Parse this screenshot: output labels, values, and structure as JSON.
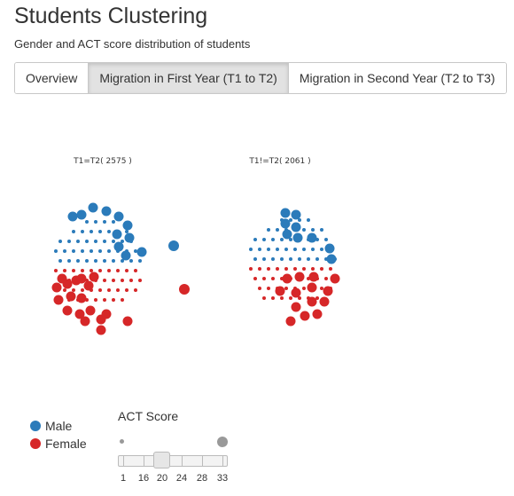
{
  "header": {
    "title": "Students Clustering",
    "subtitle": "Gender and ACT score distribution of students"
  },
  "tabs": [
    {
      "label": "Overview",
      "active": false
    },
    {
      "label": "Migration in First Year (T1 to T2)",
      "active": true
    },
    {
      "label": "Migration in Second Year (T2 to T3)",
      "active": false
    }
  ],
  "colors": {
    "male": "#2b7bba",
    "female": "#d62728",
    "slider_mark": "#999999"
  },
  "clusters": [
    {
      "label": "T1=T2( 2575 )",
      "count": 2575
    },
    {
      "label": "T1!=T2( 2061 )",
      "count": 2061
    }
  ],
  "legend": [
    {
      "label": "Male",
      "color_key": "male"
    },
    {
      "label": "Female",
      "color_key": "female"
    }
  ],
  "slider": {
    "label": "ACT Score",
    "ticks": [
      "1",
      "16",
      "20",
      "24",
      "28",
      "33"
    ],
    "value": 20
  }
}
